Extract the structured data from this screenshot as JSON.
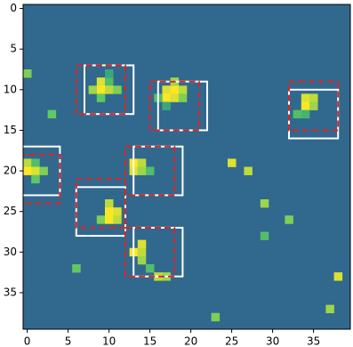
{
  "chart_data": {
    "type": "heatmap",
    "cmap": "viridis",
    "clim": [
      0,
      1
    ],
    "xlim": [
      -0.5,
      39.5
    ],
    "ylim": [
      39.5,
      -0.5
    ],
    "xticks": [
      0,
      5,
      10,
      15,
      20,
      25,
      30,
      35
    ],
    "yticks": [
      0,
      5,
      10,
      15,
      20,
      25,
      30,
      35
    ],
    "cells": [
      [
        9,
        9,
        0.95
      ],
      [
        10,
        9,
        0.7
      ],
      [
        9,
        10,
        1.0
      ],
      [
        10,
        10,
        0.9
      ],
      [
        11,
        10,
        0.8
      ],
      [
        8,
        10,
        0.85
      ],
      [
        9,
        11,
        0.75
      ],
      [
        10,
        8,
        0.6
      ],
      [
        17,
        10,
        0.95
      ],
      [
        18,
        10,
        1.0
      ],
      [
        19,
        10,
        0.9
      ],
      [
        18,
        9,
        0.85
      ],
      [
        17,
        11,
        1.0
      ],
      [
        18,
        11,
        0.95
      ],
      [
        19,
        11,
        0.8
      ],
      [
        16,
        11,
        0.7
      ],
      [
        17,
        12,
        0.6
      ],
      [
        34,
        11,
        0.95
      ],
      [
        35,
        11,
        0.9
      ],
      [
        34,
        12,
        1.0
      ],
      [
        35,
        12,
        0.85
      ],
      [
        33,
        13,
        0.7
      ],
      [
        34,
        13,
        0.65
      ],
      [
        0,
        19,
        0.9
      ],
      [
        1,
        19,
        0.7
      ],
      [
        0,
        20,
        1.0
      ],
      [
        1,
        20,
        0.95
      ],
      [
        2,
        20,
        0.8
      ],
      [
        1,
        21,
        0.75
      ],
      [
        13,
        19,
        1.0
      ],
      [
        14,
        19,
        0.9
      ],
      [
        13,
        20,
        0.95
      ],
      [
        14,
        20,
        0.85
      ],
      [
        15,
        20,
        0.7
      ],
      [
        10,
        24,
        0.9
      ],
      [
        10,
        25,
        1.0
      ],
      [
        11,
        25,
        0.95
      ],
      [
        9,
        26,
        0.8
      ],
      [
        10,
        26,
        1.0
      ],
      [
        11,
        26,
        0.9
      ],
      [
        14,
        29,
        0.95
      ],
      [
        13,
        30,
        1.0
      ],
      [
        14,
        30,
        0.9
      ],
      [
        14,
        31,
        0.85
      ],
      [
        15,
        32,
        0.7
      ],
      [
        16,
        33,
        0.9
      ],
      [
        17,
        33,
        0.85
      ],
      [
        25,
        19,
        0.95
      ],
      [
        27,
        20,
        0.9
      ],
      [
        29,
        24,
        0.85
      ],
      [
        32,
        26,
        0.8
      ],
      [
        38,
        33,
        0.95
      ],
      [
        37,
        37,
        0.85
      ],
      [
        23,
        38,
        0.8
      ],
      [
        6,
        32,
        0.75
      ],
      [
        29,
        28,
        0.7
      ],
      [
        3,
        13,
        0.75
      ],
      [
        0,
        8,
        0.8
      ]
    ],
    "box_series": [
      {
        "color": "#ffffff",
        "style": "solid",
        "boxes": [
          [
            7,
            7,
            13,
            13
          ],
          [
            16,
            9,
            22,
            15
          ],
          [
            32,
            10,
            38,
            16
          ],
          [
            -1,
            17,
            4,
            23
          ],
          [
            13,
            17,
            19,
            23
          ],
          [
            6,
            22,
            12,
            28
          ],
          [
            13,
            27,
            19,
            33
          ]
        ]
      },
      {
        "color": "#d62728",
        "style": "dashed",
        "boxes": [
          [
            6,
            7,
            12,
            13
          ],
          [
            15,
            9,
            21,
            15
          ],
          [
            32,
            9,
            38,
            15
          ],
          [
            -1,
            18,
            4,
            24
          ],
          [
            12,
            17,
            18,
            23
          ],
          [
            6,
            21,
            12,
            27
          ],
          [
            12,
            27,
            18,
            33
          ]
        ]
      }
    ]
  }
}
